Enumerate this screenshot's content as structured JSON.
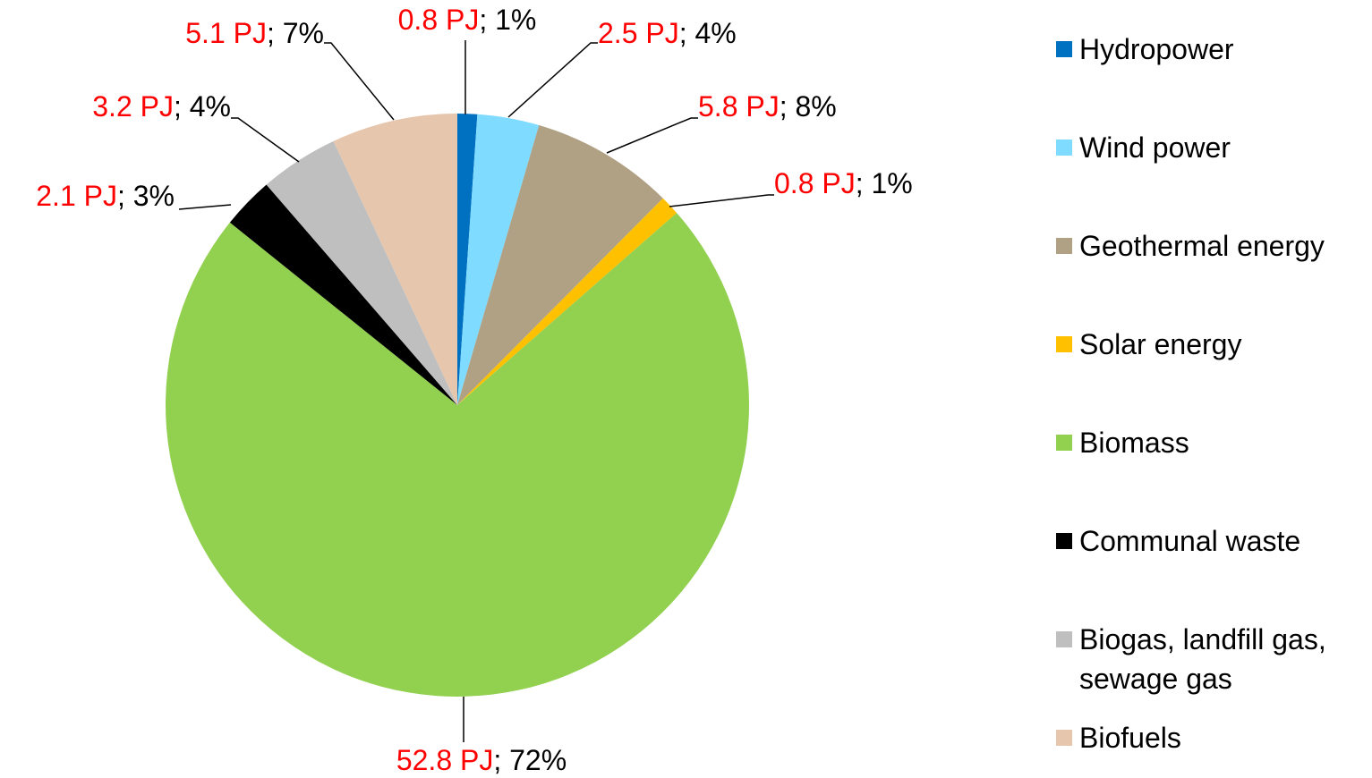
{
  "chart_data": {
    "type": "pie",
    "categories": [
      "Hydropower",
      "Wind power",
      "Geothermal energy",
      "Solar energy",
      "Biomass",
      "Communal waste",
      "Biogas, landfill gas, sewage gas",
      "Biofuels"
    ],
    "values": [
      0.8,
      2.5,
      5.8,
      0.8,
      52.8,
      2.1,
      3.2,
      5.1
    ],
    "value_labels": [
      "0.8 PJ",
      "2.5 PJ",
      "5.8 PJ",
      "0.8 PJ",
      "52.8 PJ",
      "2.1 PJ",
      "3.2 PJ",
      "5.1 PJ"
    ],
    "label_separator": "; ",
    "percent_labels": [
      "1%",
      "4%",
      "8%",
      "1%",
      "72%",
      "3%",
      "4%",
      "7%"
    ],
    "colors": [
      "#0070c0",
      "#7fdbff",
      "#b0a084",
      "#ffc000",
      "#92d050",
      "#000000",
      "#bfbfbf",
      "#e6c6ad"
    ],
    "value_label_color": "#ff0000",
    "legend": "right"
  }
}
